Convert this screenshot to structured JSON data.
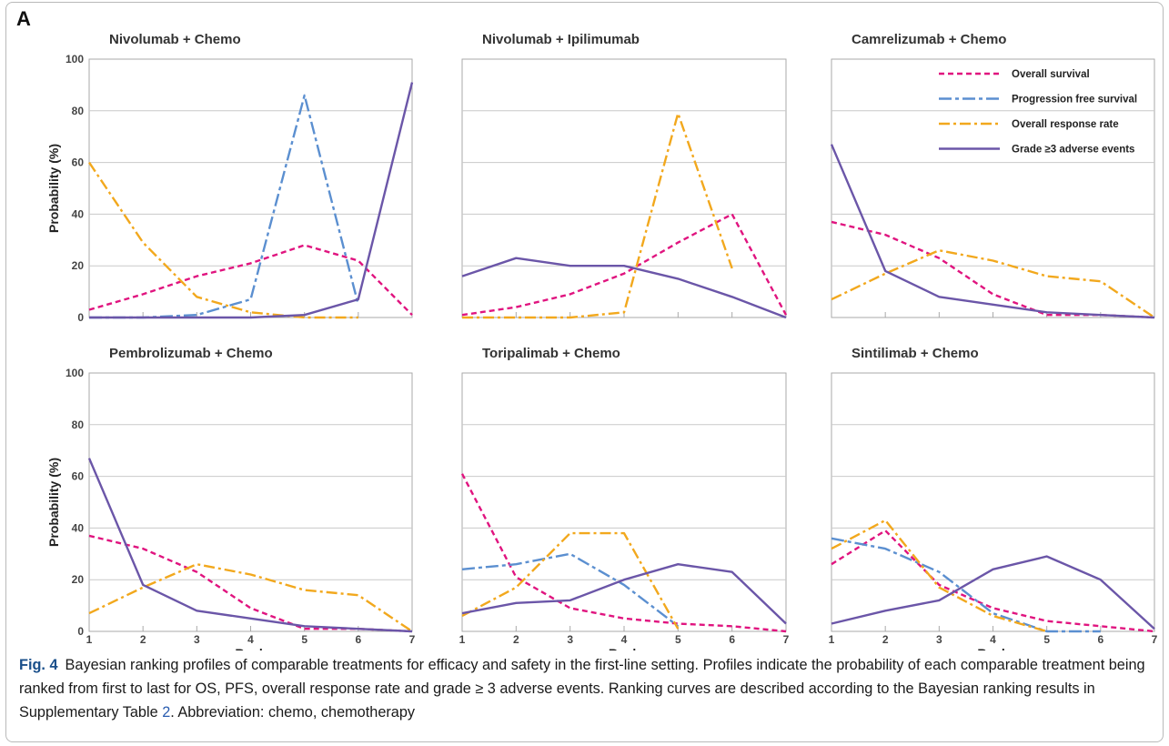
{
  "panel_label": "A",
  "colors": {
    "overall_survival": "#e0147f",
    "progression_free_survival": "#5b8fd0",
    "overall_response_rate": "#f2a81d",
    "grade3_adverse_events": "#6b56a8",
    "grid": "#c9c9c9",
    "axis": "#a9a9a9"
  },
  "legend": [
    {
      "key": "os",
      "label": "Overall survival"
    },
    {
      "key": "pfs",
      "label": "Progression free survival"
    },
    {
      "key": "orr",
      "label": "Overall response rate"
    },
    {
      "key": "ae",
      "label": "Grade ≥3 adverse events"
    }
  ],
  "chart_data": [
    {
      "type": "line",
      "title": "Nivolumab + Chemo",
      "xlabel": "",
      "ylabel": "Probability (%)",
      "x": [
        1,
        2,
        3,
        4,
        5,
        6,
        7
      ],
      "ylim": [
        0,
        100
      ],
      "yticks": [
        0,
        20,
        40,
        60,
        80,
        100
      ],
      "grid": true,
      "series": [
        {
          "key": "os",
          "name": "Overall survival",
          "values": [
            3,
            9,
            16,
            21,
            28,
            22,
            1
          ]
        },
        {
          "key": "pfs",
          "name": "Progression free survival",
          "values": [
            0,
            0,
            1,
            7,
            86,
            5,
            null
          ]
        },
        {
          "key": "orr",
          "name": "Overall response rate",
          "values": [
            60,
            29,
            8,
            2,
            0,
            0,
            null
          ]
        },
        {
          "key": "ae",
          "name": "Grade ≥3 adverse events",
          "values": [
            0,
            0,
            0,
            0,
            1,
            7,
            91
          ]
        }
      ]
    },
    {
      "type": "line",
      "title": "Nivolumab + Ipilimumab",
      "xlabel": "",
      "ylabel": "",
      "x": [
        1,
        2,
        3,
        4,
        5,
        6,
        7
      ],
      "ylim": [
        0,
        100
      ],
      "grid": true,
      "series": [
        {
          "key": "os",
          "name": "Overall survival",
          "values": [
            1,
            4,
            9,
            17,
            29,
            40,
            1
          ]
        },
        {
          "key": "orr",
          "name": "Overall response rate",
          "values": [
            0,
            0,
            0,
            2,
            79,
            19,
            null
          ]
        },
        {
          "key": "ae",
          "name": "Grade ≥3 adverse events",
          "values": [
            16,
            23,
            20,
            20,
            15,
            8,
            0
          ]
        }
      ]
    },
    {
      "type": "line",
      "title": "Camrelizumab + Chemo",
      "xlabel": "",
      "ylabel": "",
      "x": [
        1,
        2,
        3,
        4,
        5,
        6,
        7
      ],
      "ylim": [
        0,
        100
      ],
      "grid": true,
      "legend_position": "top-right",
      "series": [
        {
          "key": "os",
          "name": "Overall survival",
          "values": [
            37,
            32,
            23,
            9,
            1,
            1,
            0
          ]
        },
        {
          "key": "orr",
          "name": "Overall response rate",
          "values": [
            7,
            17,
            26,
            22,
            16,
            14,
            0
          ]
        },
        {
          "key": "ae",
          "name": "Grade ≥3 adverse events",
          "values": [
            67,
            18,
            8,
            5,
            2,
            1,
            0
          ]
        }
      ]
    },
    {
      "type": "line",
      "title": "Pembrolizumab + Chemo",
      "xlabel": "Rank",
      "ylabel": "Probability (%)",
      "x": [
        1,
        2,
        3,
        4,
        5,
        6,
        7
      ],
      "ylim": [
        0,
        100
      ],
      "yticks": [
        0,
        20,
        40,
        60,
        80,
        100
      ],
      "grid": true,
      "series": [
        {
          "key": "os",
          "name": "Overall survival",
          "values": [
            37,
            32,
            23,
            9,
            1,
            1,
            0
          ]
        },
        {
          "key": "orr",
          "name": "Overall response rate",
          "values": [
            7,
            17,
            26,
            22,
            16,
            14,
            0
          ]
        },
        {
          "key": "ae",
          "name": "Grade ≥3 adverse events",
          "values": [
            67,
            18,
            8,
            5,
            2,
            1,
            0
          ]
        }
      ]
    },
    {
      "type": "line",
      "title": "Toripalimab + Chemo",
      "xlabel": "Rank",
      "ylabel": "",
      "x": [
        1,
        2,
        3,
        4,
        5,
        6,
        7
      ],
      "ylim": [
        0,
        100
      ],
      "grid": true,
      "series": [
        {
          "key": "os",
          "name": "Overall survival",
          "values": [
            61,
            21,
            9,
            5,
            3,
            2,
            0
          ]
        },
        {
          "key": "pfs",
          "name": "Progression free survival",
          "values": [
            24,
            26,
            30,
            18,
            2,
            null,
            null
          ]
        },
        {
          "key": "orr",
          "name": "Overall response rate",
          "values": [
            6,
            17,
            38,
            38,
            1,
            null,
            null
          ]
        },
        {
          "key": "ae",
          "name": "Grade ≥3 adverse events",
          "values": [
            7,
            11,
            12,
            20,
            26,
            23,
            3
          ]
        }
      ]
    },
    {
      "type": "line",
      "title": "Sintilimab + Chemo",
      "xlabel": "Rank",
      "ylabel": "",
      "x": [
        1,
        2,
        3,
        4,
        5,
        6,
        7
      ],
      "ylim": [
        0,
        100
      ],
      "grid": true,
      "series": [
        {
          "key": "os",
          "name": "Overall survival",
          "values": [
            26,
            39,
            18,
            9,
            4,
            2,
            0
          ]
        },
        {
          "key": "pfs",
          "name": "Progression free survival",
          "values": [
            36,
            32,
            23,
            7,
            0,
            0,
            null
          ]
        },
        {
          "key": "orr",
          "name": "Overall response rate",
          "values": [
            32,
            43,
            17,
            6,
            0,
            null,
            null
          ]
        },
        {
          "key": "ae",
          "name": "Grade ≥3 adverse events",
          "values": [
            3,
            8,
            12,
            24,
            29,
            20,
            1
          ]
        }
      ]
    }
  ],
  "caption": {
    "fig_label": "Fig. 4",
    "text_before_link": "Bayesian ranking profiles of comparable treatments for efficacy and safety in the first-line setting. Profiles indicate the probability of each comparable treatment being ranked from first to last for OS, PFS, overall response rate and grade ≥ 3 adverse events. Ranking curves are described according to the Bayesian ranking results in Supplementary Table ",
    "link_text": "2",
    "text_after_link": ". Abbreviation: chemo, chemotherapy"
  }
}
